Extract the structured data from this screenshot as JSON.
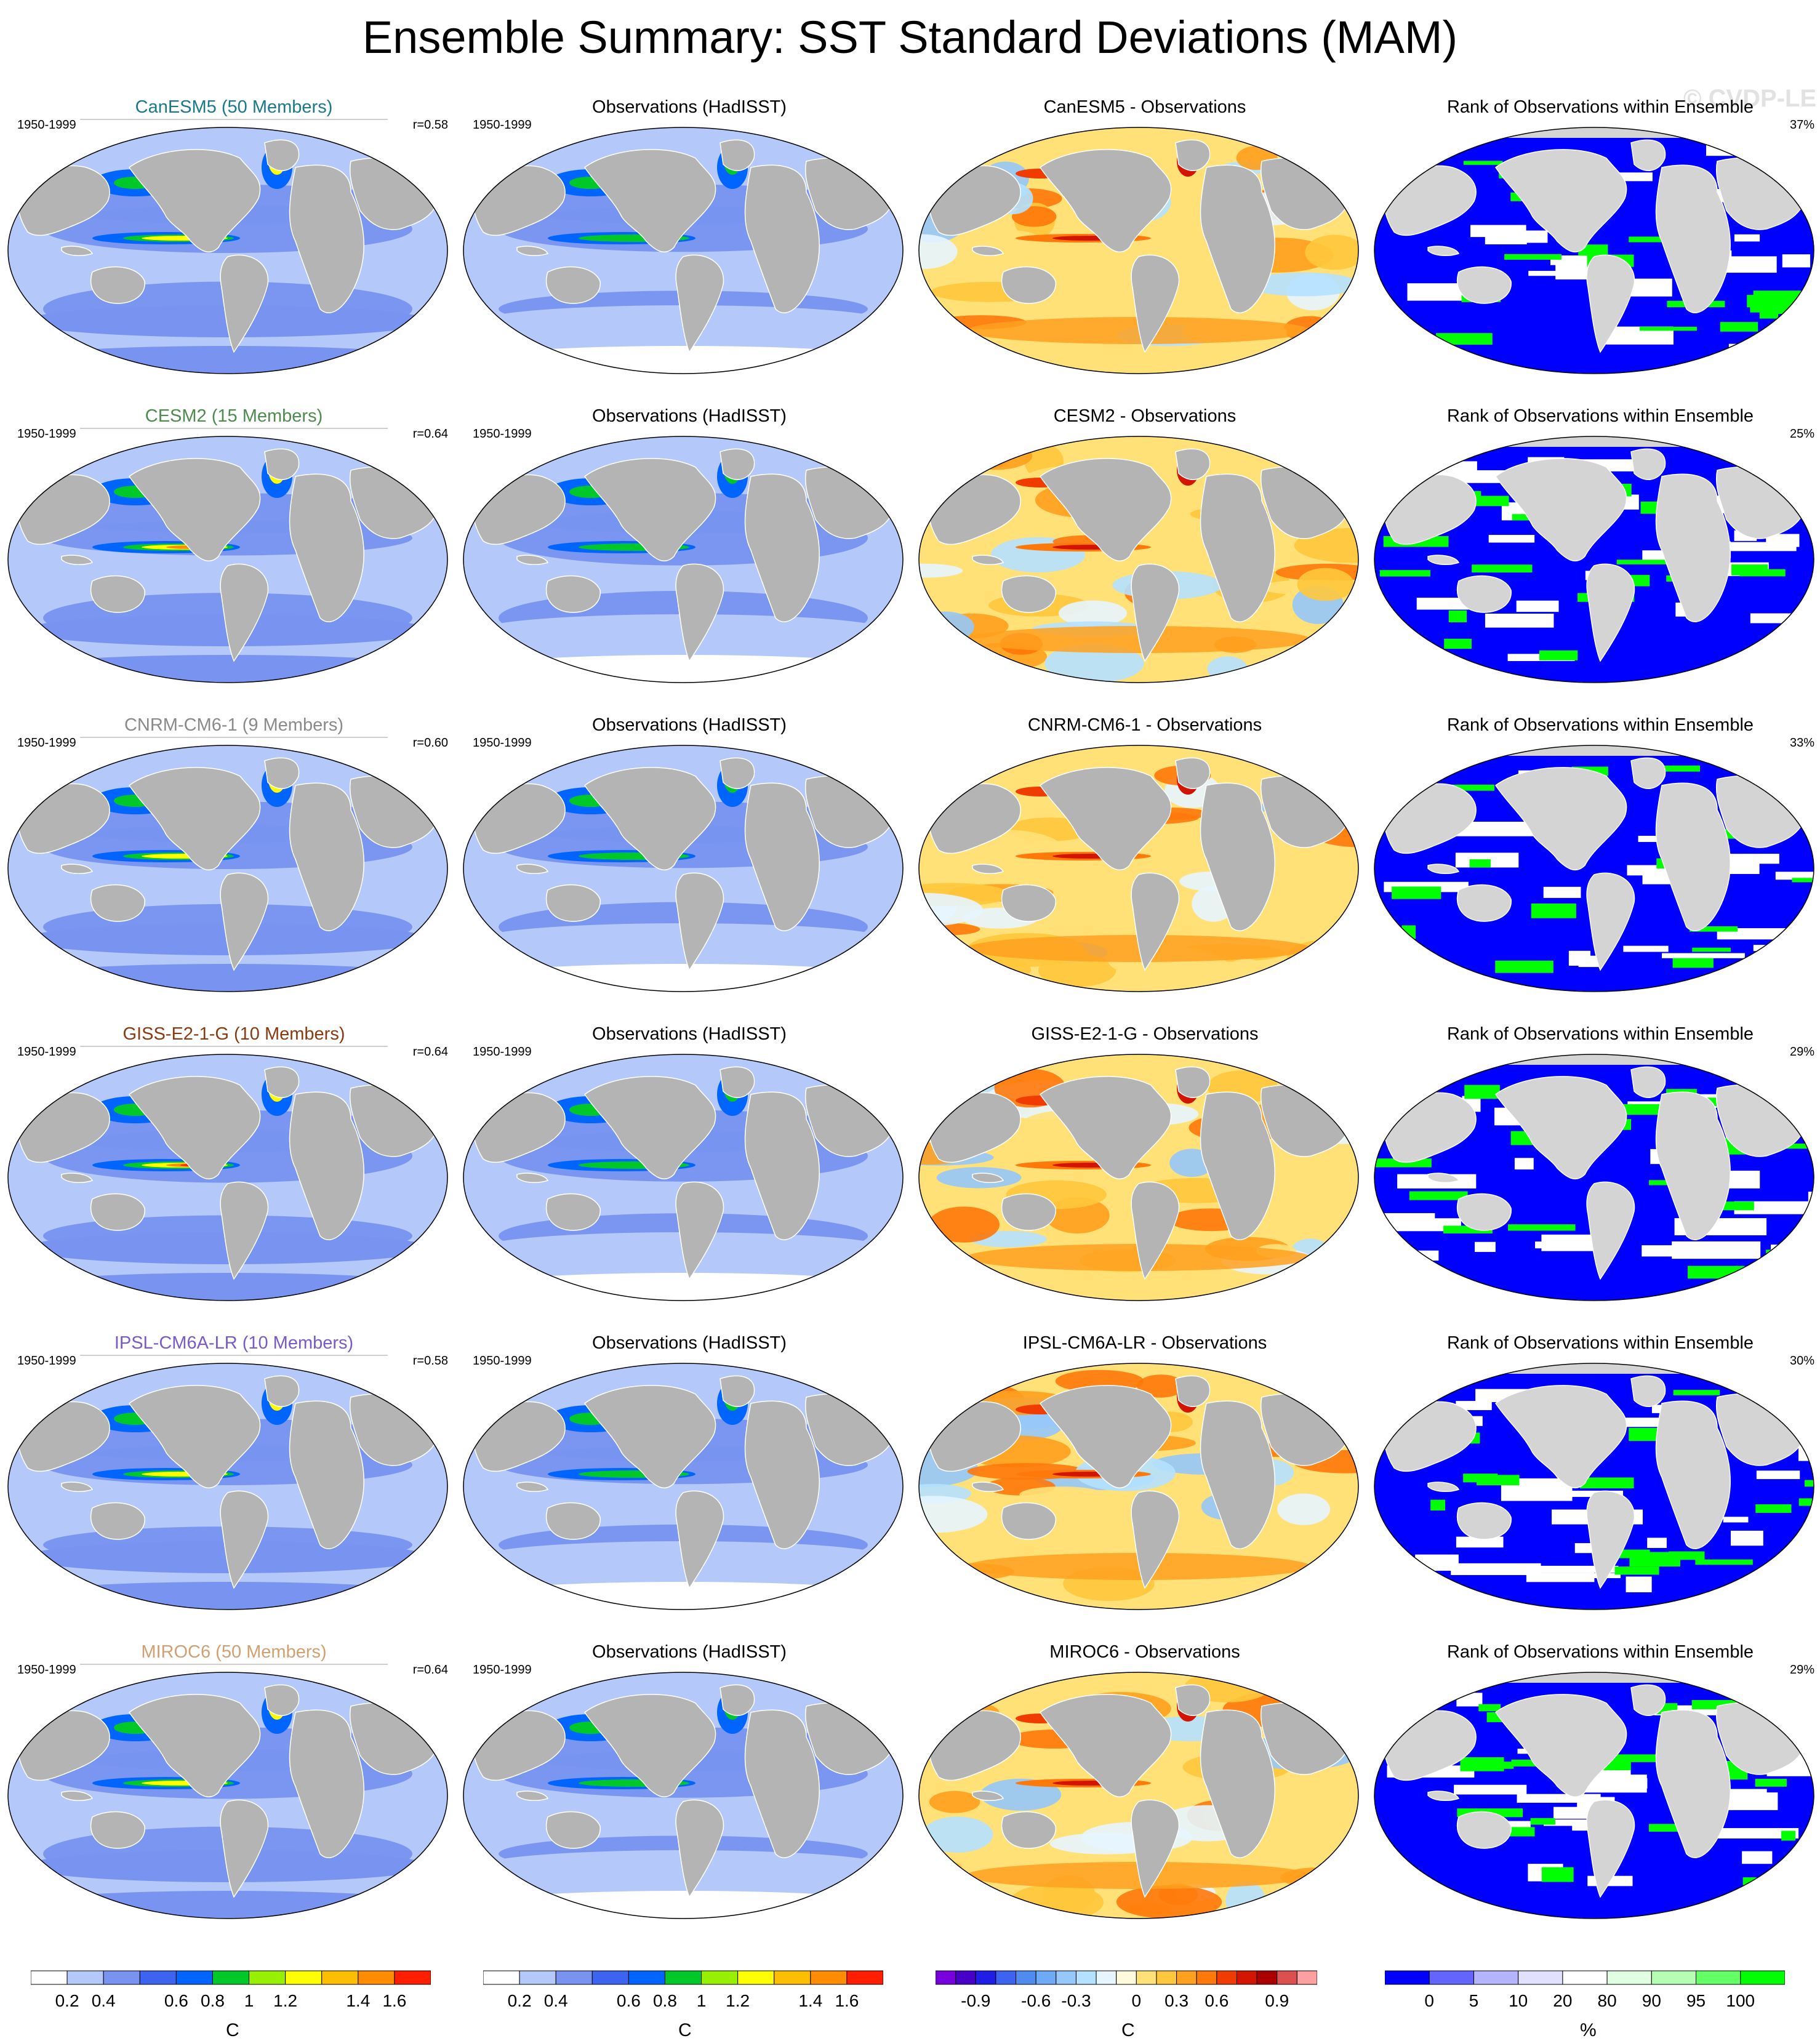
{
  "title": "Ensemble Summary: SST Standard Deviations (MAM)",
  "watermark": "© CVDP-LE",
  "period": "1950-1999",
  "colors": {
    "land": "#b4b4b4",
    "antarctica_land": "#d2d2d2",
    "sst_levels": [
      "#ffffff",
      "#b4c8fa",
      "#7894f0",
      "#3c64f0",
      "#0064ff",
      "#00c828",
      "#96f000",
      "#ffff00",
      "#ffbe00",
      "#ff8c00",
      "#ff1e00"
    ],
    "diff_levels": [
      "#7800dc",
      "#4600c8",
      "#1e1ee6",
      "#3c64f0",
      "#508cf0",
      "#6eaaf5",
      "#96c8fa",
      "#b4e1ff",
      "#e6f5ff",
      "#fffadc",
      "#ffe178",
      "#ffc83c",
      "#ffa01e",
      "#ff780a",
      "#f03c00",
      "#d21400",
      "#aa0000",
      "#dc5050",
      "#ffa0a0"
    ],
    "rank_levels": [
      "#0000ff",
      "#6464ff",
      "#b4b4ff",
      "#e1e1ff",
      "#ffffff",
      "#e1ffe1",
      "#b4ffb4",
      "#64ff64",
      "#00ff00"
    ]
  },
  "rows": [
    {
      "model": "CanESM5 (50 Members)",
      "model_color": "#1a7a8a",
      "r": "r=0.58",
      "diff_title": "CanESM5 - Observations",
      "rank_pct": "37%"
    },
    {
      "model": "CESM2 (15 Members)",
      "model_color": "#4f8a4f",
      "r": "r=0.64",
      "diff_title": "CESM2 - Observations",
      "rank_pct": "25%"
    },
    {
      "model": "CNRM-CM6-1 (9 Members)",
      "model_color": "#8a8a8a",
      "r": "r=0.60",
      "diff_title": "CNRM-CM6-1 - Observations",
      "rank_pct": "33%"
    },
    {
      "model": "GISS-E2-1-G (10 Members)",
      "model_color": "#8a3a10",
      "r": "r=0.64",
      "diff_title": "GISS-E2-1-G - Observations",
      "rank_pct": "29%"
    },
    {
      "model": "IPSL-CM6A-LR (10 Members)",
      "model_color": "#7a5ac8",
      "r": "r=0.58",
      "diff_title": "IPSL-CM6A-LR - Observations",
      "rank_pct": "30%"
    },
    {
      "model": "MIROC6 (50 Members)",
      "model_color": "#d2a070",
      "r": "r=0.64",
      "diff_title": "MIROC6 - Observations",
      "rank_pct": "29%"
    }
  ],
  "obs_title": "Observations (HadISST)",
  "rank_title": "Rank of Observations within Ensemble",
  "chart_data": {
    "type": "heatmap",
    "description_units": {
      "sst": "C",
      "diff": "C",
      "rank": "%"
    },
    "colorbars": [
      {
        "id": "sst-model",
        "unit": "C",
        "labels": [
          "0.2",
          "0.4",
          "0.6",
          "0.8",
          "1",
          "1.2",
          "1.4",
          "1.6"
        ]
      },
      {
        "id": "sst-obs",
        "unit": "C",
        "labels": [
          "0.2",
          "0.4",
          "0.6",
          "0.8",
          "1",
          "1.2",
          "1.4",
          "1.6"
        ]
      },
      {
        "id": "diff",
        "unit": "C",
        "labels": [
          "-0.9",
          "-0.6",
          "-0.3",
          "0",
          "0.3",
          "0.6",
          "0.9"
        ]
      },
      {
        "id": "rank",
        "unit": "%",
        "labels": [
          "0",
          "5",
          "10",
          "20",
          "80",
          "90",
          "95",
          "100"
        ]
      }
    ],
    "pattern_correlations": [
      0.58,
      0.64,
      0.6,
      0.64,
      0.58,
      0.64
    ],
    "rank_percentages": [
      37,
      25,
      33,
      29,
      30,
      29
    ]
  }
}
